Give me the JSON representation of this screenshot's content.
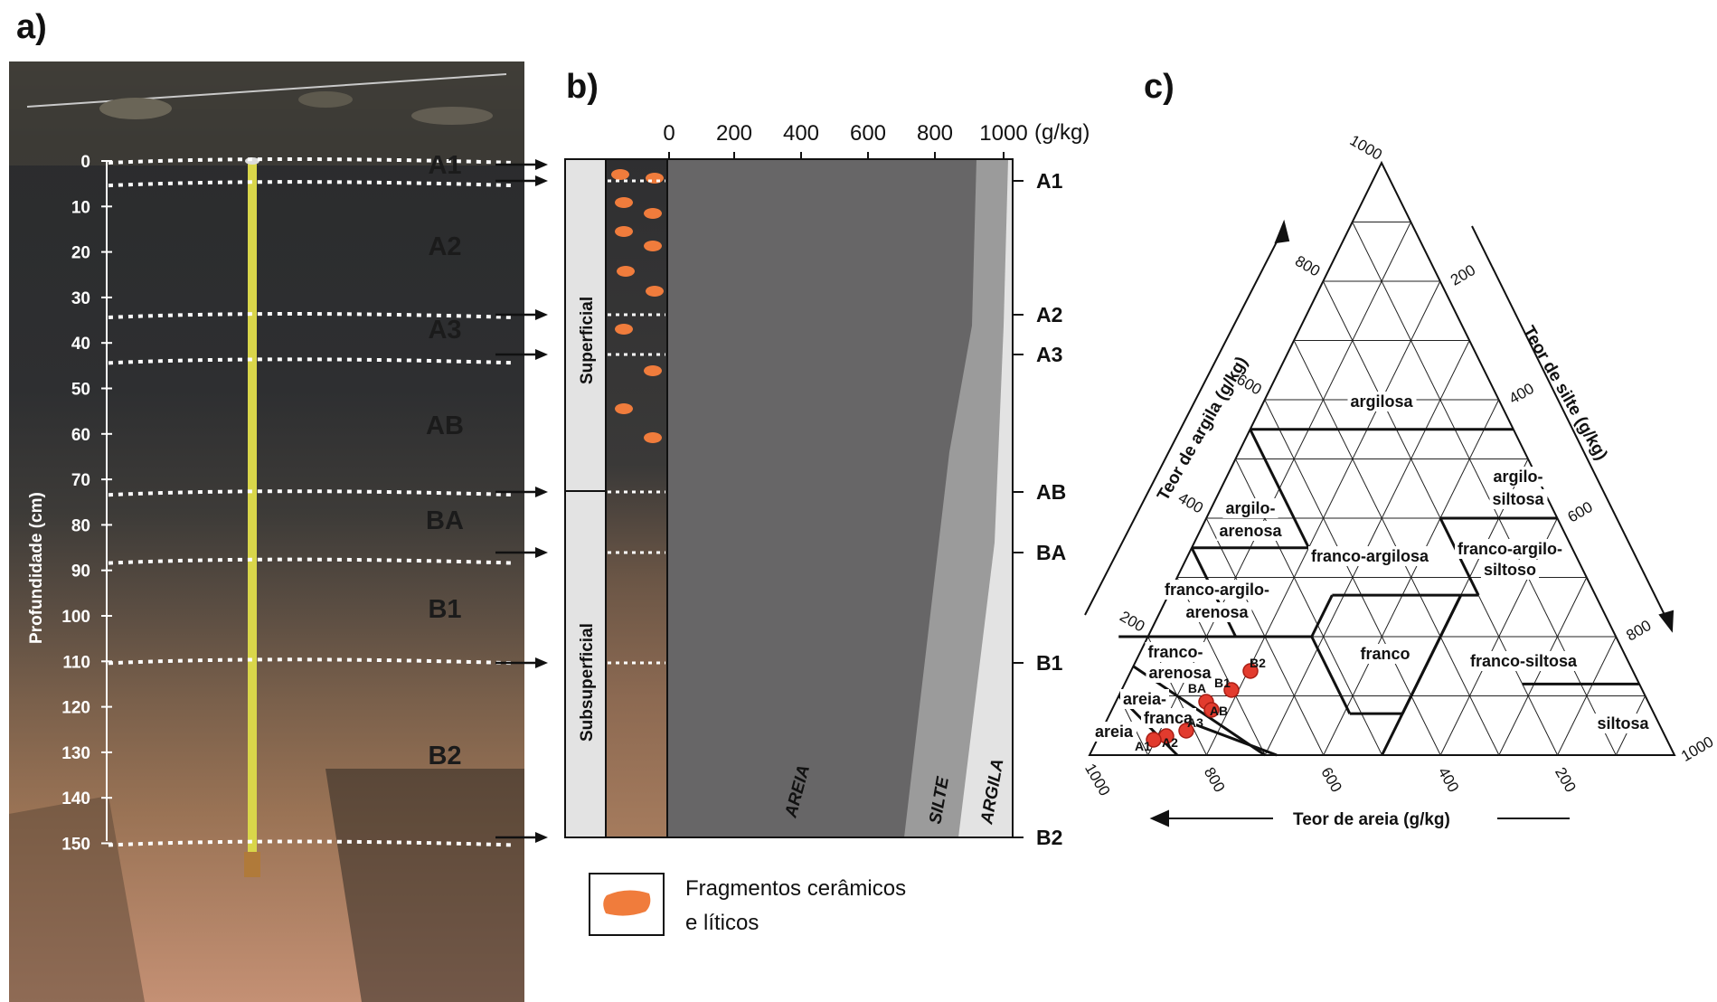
{
  "panels": {
    "a": "a)",
    "b": "b)",
    "c": "c)"
  },
  "panel_a": {
    "ylabel": "Profundidade (cm)",
    "depth_ticks": [
      0,
      10,
      20,
      30,
      40,
      50,
      60,
      70,
      80,
      90,
      100,
      110,
      120,
      130,
      140,
      150
    ],
    "horizons": [
      "A1",
      "A2",
      "A3",
      "AB",
      "BA",
      "B1",
      "B2"
    ]
  },
  "panel_b": {
    "x_ticks": [
      "0",
      "200",
      "400",
      "600",
      "800",
      "1000"
    ],
    "unit": "(g/kg)",
    "zones": [
      "Superficial",
      "Subsuperficial"
    ],
    "fractions": [
      "AREIA",
      "SILTE",
      "ARGILA"
    ],
    "horizon_labels": [
      "A1",
      "A2",
      "A3",
      "AB",
      "BA",
      "B1",
      "B2"
    ],
    "legend": [
      "Fragmentos cerâmicos",
      "e líticos"
    ],
    "colors": {
      "areia": "#676667",
      "silte": "#9b9b9b",
      "argila": "#e3e3e3",
      "fragment": "#f07c3c"
    }
  },
  "panel_c": {
    "clay_axis_label": "Teor de argila (g/kg)",
    "silt_axis_label": "Teor de silte (g/kg)",
    "sand_axis_label": "Teor de areia (g/kg)",
    "clay_ticks": [
      "1000",
      "800",
      "600",
      "400",
      "200"
    ],
    "silt_ticks": [
      "200",
      "400",
      "600",
      "800",
      "1000"
    ],
    "sand_ticks": [
      "1000",
      "800",
      "600",
      "400",
      "200"
    ],
    "classes": {
      "argilosa": "argilosa",
      "argilo_siltosa": [
        "argilo-",
        "siltosa"
      ],
      "argilo_arenosa": [
        "argilo-",
        "arenosa"
      ],
      "franco_argilosa": "franco-argilosa",
      "franco_argilo_siltoso": [
        "franco-argilo-",
        "siltoso"
      ],
      "franco_argilo_arenosa": [
        "franco-argilo-",
        "arenosa"
      ],
      "franco": "franco",
      "franco_siltosa": "franco-siltosa",
      "franco_arenosa": [
        "franco-",
        "arenosa"
      ],
      "areia_franca": [
        "areia-",
        "franca"
      ],
      "areia": "areia",
      "siltosa": "siltosa"
    },
    "point_labels": [
      "B2",
      "B1",
      "BA",
      "AB",
      "A3",
      "A2",
      "A1"
    ],
    "point_color": "#e23b2e"
  }
}
